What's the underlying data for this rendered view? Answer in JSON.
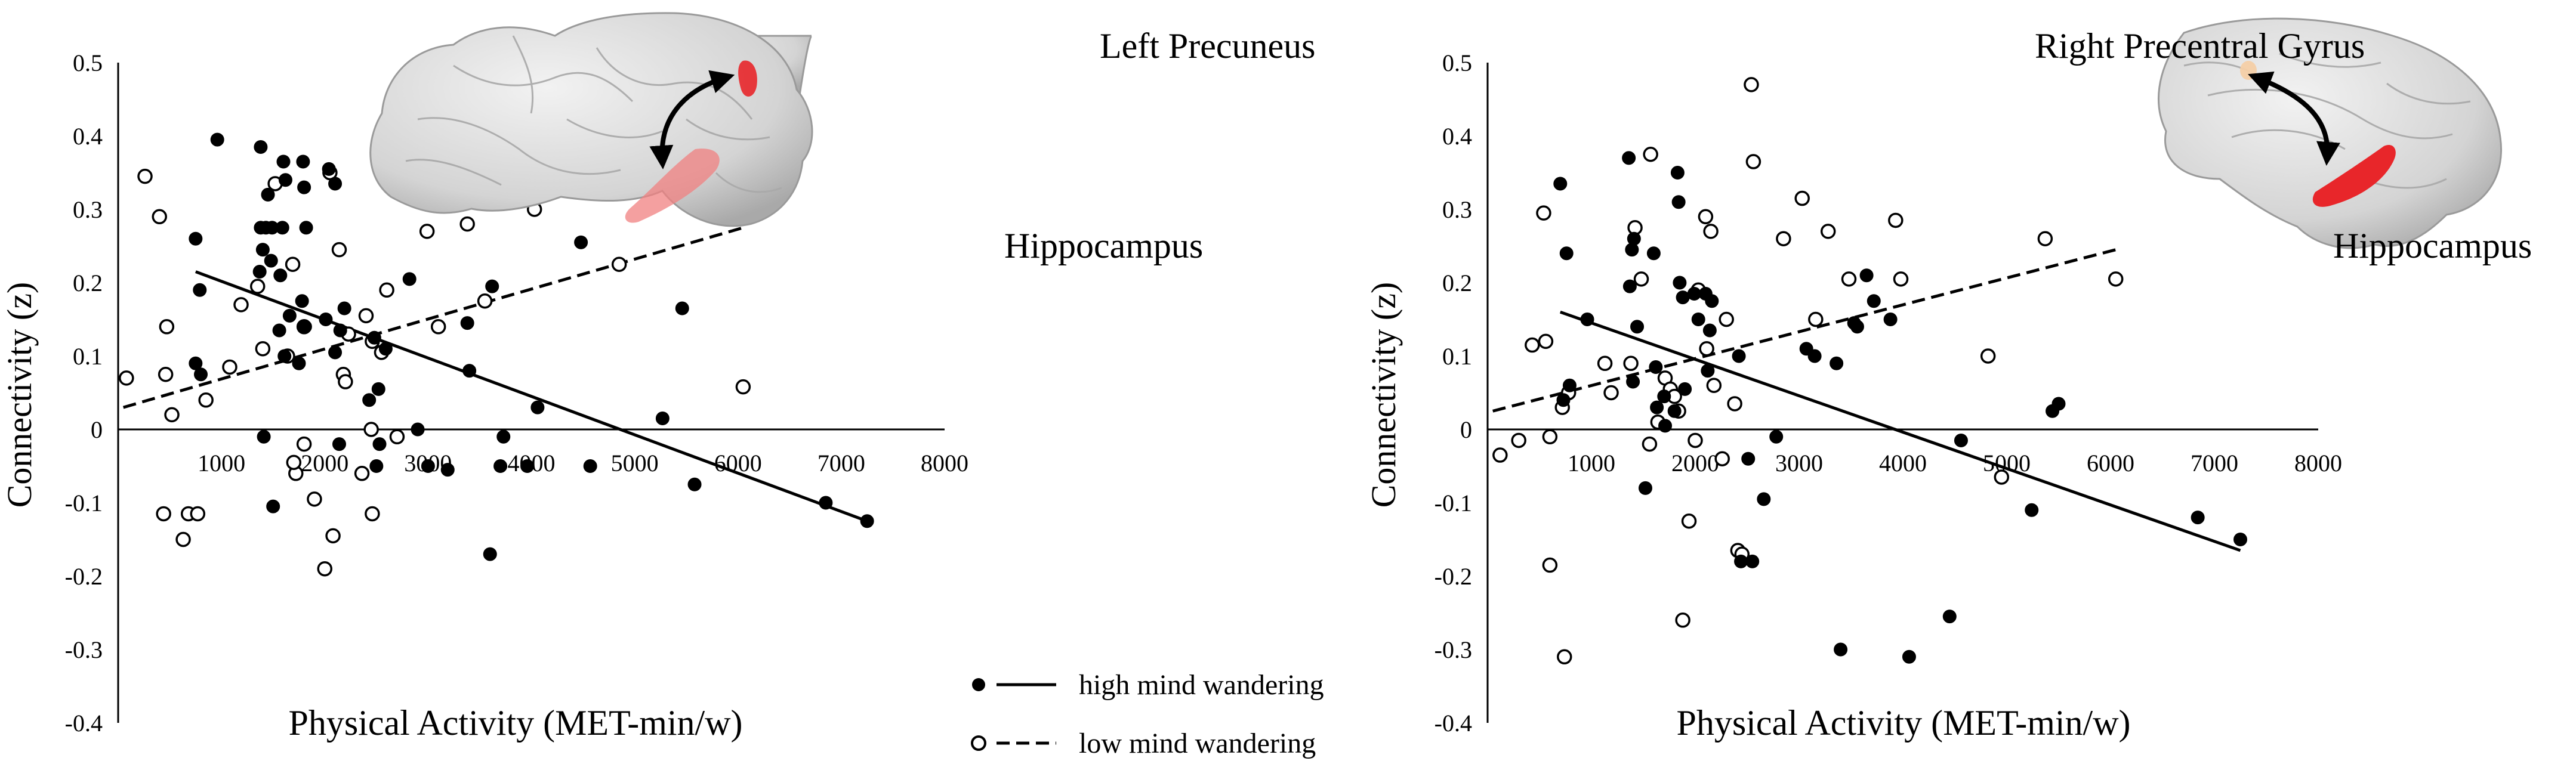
{
  "colors": {
    "marker_high": "#000000",
    "marker_low_fill": "#ffffff",
    "axis": "#000000",
    "brain": "#d6d6d6",
    "roi": "#e8262a",
    "roi_soft": "#f3a3a3",
    "roi_pale": "#f4cfa6"
  },
  "legend": {
    "high": "high mind wandering",
    "low": "low mind wandering",
    "placement": "bottom-center"
  },
  "panels": [
    {
      "region_top": "Left Precuneus",
      "region_bottom": "Hippocampus",
      "brain_view": "lateral",
      "arrow_icon": "double-headed-curved-arrow-icon"
    },
    {
      "region_top": "Right Precentral Gyrus",
      "region_bottom": "Hippocampus",
      "brain_view": "medial",
      "arrow_icon": "double-headed-curved-arrow-icon"
    }
  ],
  "chart_data": [
    {
      "type": "scatter",
      "xlabel": "Physical Activity (MET-min/w)",
      "ylabel": "Connectivity (z)",
      "xlim": [
        0,
        8000
      ],
      "ylim": [
        -0.4,
        0.5
      ],
      "xticks": [
        1000,
        2000,
        3000,
        4000,
        5000,
        6000,
        7000,
        8000
      ],
      "yticks": [
        0.5,
        0.4,
        0.3,
        0.2,
        0.1,
        0,
        -0.1,
        -0.2,
        -0.3,
        -0.4
      ],
      "grid": false,
      "series": [
        {
          "name": "high mind wandering",
          "marker": "filled",
          "line": "solid",
          "fit": [
            [
              750,
              0.215
            ],
            [
              7250,
              -0.125
            ]
          ],
          "points": [
            [
              750,
              0.26
            ],
            [
              790,
              0.19
            ],
            [
              750,
              0.09
            ],
            [
              800,
              0.075
            ],
            [
              960,
              0.395
            ],
            [
              1380,
              0.385
            ],
            [
              1450,
              0.32
            ],
            [
              1380,
              0.275
            ],
            [
              1430,
              0.275
            ],
            [
              1490,
              0.275
            ],
            [
              1400,
              0.245
            ],
            [
              1370,
              0.215
            ],
            [
              1480,
              0.23
            ],
            [
              1600,
              0.365
            ],
            [
              1620,
              0.34
            ],
            [
              1590,
              0.275
            ],
            [
              1570,
              0.21
            ],
            [
              1560,
              0.135
            ],
            [
              1660,
              0.155
            ],
            [
              1610,
              0.1
            ],
            [
              1410,
              -0.01
            ],
            [
              1500,
              -0.105
            ],
            [
              1790,
              0.365
            ],
            [
              1800,
              0.33
            ],
            [
              1820,
              0.275
            ],
            [
              1780,
              0.175
            ],
            [
              1750,
              0.09
            ],
            [
              1810,
              0.14
            ],
            [
              2040,
              0.355
            ],
            [
              2100,
              0.335
            ],
            [
              2010,
              0.15
            ],
            [
              2150,
              0.135
            ],
            [
              2190,
              0.165
            ],
            [
              2100,
              0.105
            ],
            [
              2140,
              -0.02
            ],
            [
              2430,
              0.04
            ],
            [
              2480,
              0.125
            ],
            [
              2520,
              0.055
            ],
            [
              2530,
              -0.02
            ],
            [
              2500,
              -0.05
            ],
            [
              2590,
              0.11
            ],
            [
              2820,
              0.205
            ],
            [
              3000,
              -0.05
            ],
            [
              3190,
              -0.055
            ],
            [
              3380,
              0.145
            ],
            [
              3400,
              0.08
            ],
            [
              3620,
              0.195
            ],
            [
              3730,
              -0.01
            ],
            [
              3600,
              -0.17
            ],
            [
              3960,
              -0.05
            ],
            [
              4060,
              0.03
            ],
            [
              4480,
              0.255
            ],
            [
              4570,
              -0.05
            ],
            [
              5270,
              0.015
            ],
            [
              5460,
              0.165
            ],
            [
              5580,
              -0.075
            ],
            [
              6850,
              -0.1
            ],
            [
              7250,
              -0.125
            ],
            [
              3700,
              -0.05
            ],
            [
              2900,
              0.0
            ]
          ]
        },
        {
          "name": "low mind wandering",
          "marker": "open",
          "line": "dashed",
          "fit": [
            [
              50,
              0.03
            ],
            [
              6050,
              0.275
            ]
          ],
          "points": [
            [
              80,
              0.07
            ],
            [
              260,
              0.345
            ],
            [
              400,
              0.29
            ],
            [
              470,
              0.14
            ],
            [
              460,
              0.075
            ],
            [
              520,
              0.02
            ],
            [
              440,
              -0.115
            ],
            [
              680,
              -0.115
            ],
            [
              630,
              -0.15
            ],
            [
              770,
              -0.115
            ],
            [
              850,
              0.04
            ],
            [
              1080,
              0.085
            ],
            [
              1190,
              0.17
            ],
            [
              1350,
              0.195
            ],
            [
              1400,
              0.11
            ],
            [
              1520,
              0.335
            ],
            [
              1690,
              0.225
            ],
            [
              1720,
              -0.06
            ],
            [
              1700,
              -0.045
            ],
            [
              1800,
              -0.02
            ],
            [
              1800,
              0.14
            ],
            [
              1900,
              -0.095
            ],
            [
              2000,
              -0.19
            ],
            [
              2050,
              0.35
            ],
            [
              2140,
              0.245
            ],
            [
              2180,
              0.075
            ],
            [
              2200,
              0.065
            ],
            [
              2230,
              0.13
            ],
            [
              2080,
              -0.145
            ],
            [
              2360,
              -0.06
            ],
            [
              2400,
              0.155
            ],
            [
              2450,
              0.0
            ],
            [
              2460,
              -0.115
            ],
            [
              2550,
              0.105
            ],
            [
              2600,
              0.19
            ],
            [
              2700,
              -0.01
            ],
            [
              2990,
              0.27
            ],
            [
              3100,
              0.14
            ],
            [
              3380,
              0.28
            ],
            [
              3550,
              0.175
            ],
            [
              3990,
              0.37
            ],
            [
              4030,
              0.3
            ],
            [
              4720,
              0.445
            ],
            [
              4850,
              0.225
            ],
            [
              5420,
              0.355
            ],
            [
              6050,
              0.058
            ],
            [
              1640,
              0.1
            ],
            [
              2460,
              0.12
            ]
          ]
        }
      ]
    },
    {
      "type": "scatter",
      "xlabel": "Physical Activity (MET-min/w)",
      "ylabel": "Connectivity (z)",
      "xlim": [
        0,
        8000
      ],
      "ylim": [
        -0.4,
        0.5
      ],
      "xticks": [
        1000,
        2000,
        3000,
        4000,
        5000,
        6000,
        7000,
        8000
      ],
      "yticks": [
        0.5,
        0.4,
        0.3,
        0.2,
        0.1,
        0,
        -0.1,
        -0.2,
        -0.3,
        -0.4
      ],
      "grid": false,
      "series": [
        {
          "name": "high mind wandering",
          "marker": "filled",
          "line": "solid",
          "fit": [
            [
              700,
              0.16
            ],
            [
              7250,
              -0.165
            ]
          ],
          "points": [
            [
              700,
              0.335
            ],
            [
              760,
              0.24
            ],
            [
              790,
              0.06
            ],
            [
              730,
              0.04
            ],
            [
              960,
              0.15
            ],
            [
              1360,
              0.37
            ],
            [
              1410,
              0.26
            ],
            [
              1390,
              0.245
            ],
            [
              1370,
              0.195
            ],
            [
              1440,
              0.14
            ],
            [
              1400,
              0.065
            ],
            [
              1520,
              -0.08
            ],
            [
              1600,
              0.24
            ],
            [
              1620,
              0.085
            ],
            [
              1630,
              0.03
            ],
            [
              1700,
              0.045
            ],
            [
              1710,
              0.005
            ],
            [
              1830,
              0.35
            ],
            [
              1840,
              0.31
            ],
            [
              1850,
              0.2
            ],
            [
              1880,
              0.18
            ],
            [
              1900,
              0.055
            ],
            [
              1800,
              0.025
            ],
            [
              1990,
              0.185
            ],
            [
              2100,
              0.185
            ],
            [
              2160,
              0.175
            ],
            [
              2140,
              0.135
            ],
            [
              2120,
              0.08
            ],
            [
              2030,
              0.15
            ],
            [
              2420,
              0.1
            ],
            [
              2510,
              -0.04
            ],
            [
              2550,
              -0.18
            ],
            [
              2440,
              -0.18
            ],
            [
              2660,
              -0.095
            ],
            [
              2780,
              -0.01
            ],
            [
              3070,
              0.11
            ],
            [
              3360,
              0.09
            ],
            [
              3400,
              -0.3
            ],
            [
              3530,
              0.145
            ],
            [
              3560,
              0.14
            ],
            [
              3650,
              0.21
            ],
            [
              3720,
              0.175
            ],
            [
              3880,
              0.15
            ],
            [
              4060,
              -0.31
            ],
            [
              4560,
              -0.015
            ],
            [
              4450,
              -0.255
            ],
            [
              5240,
              -0.11
            ],
            [
              5440,
              0.025
            ],
            [
              5500,
              0.035
            ],
            [
              6840,
              -0.12
            ],
            [
              7250,
              -0.15
            ],
            [
              3150,
              0.1
            ]
          ]
        },
        {
          "name": "low mind wandering",
          "marker": "open",
          "line": "dashed",
          "fit": [
            [
              50,
              0.025
            ],
            [
              6050,
              0.245
            ]
          ],
          "points": [
            [
              120,
              -0.035
            ],
            [
              300,
              -0.015
            ],
            [
              430,
              0.115
            ],
            [
              560,
              0.12
            ],
            [
              540,
              0.295
            ],
            [
              600,
              -0.185
            ],
            [
              600,
              -0.01
            ],
            [
              720,
              0.03
            ],
            [
              780,
              0.05
            ],
            [
              740,
              -0.31
            ],
            [
              1130,
              0.09
            ],
            [
              1190,
              0.05
            ],
            [
              1420,
              0.275
            ],
            [
              1380,
              0.09
            ],
            [
              1570,
              0.375
            ],
            [
              1480,
              0.205
            ],
            [
              1560,
              -0.02
            ],
            [
              1640,
              0.01
            ],
            [
              1710,
              0.07
            ],
            [
              1760,
              0.055
            ],
            [
              1800,
              0.045
            ],
            [
              1840,
              0.025
            ],
            [
              1880,
              -0.26
            ],
            [
              1940,
              -0.125
            ],
            [
              2000,
              -0.015
            ],
            [
              2030,
              0.19
            ],
            [
              2100,
              0.29
            ],
            [
              2110,
              0.11
            ],
            [
              2180,
              0.06
            ],
            [
              2260,
              -0.04
            ],
            [
              2380,
              0.035
            ],
            [
              2410,
              -0.165
            ],
            [
              2450,
              -0.17
            ],
            [
              2540,
              0.47
            ],
            [
              2560,
              0.365
            ],
            [
              2850,
              0.26
            ],
            [
              3030,
              0.315
            ],
            [
              3160,
              0.15
            ],
            [
              3280,
              0.27
            ],
            [
              3480,
              0.205
            ],
            [
              3930,
              0.285
            ],
            [
              3980,
              0.205
            ],
            [
              4820,
              0.1
            ],
            [
              4950,
              -0.065
            ],
            [
              5370,
              0.26
            ],
            [
              6050,
              0.205
            ],
            [
              2150,
              0.27
            ],
            [
              2300,
              0.15
            ]
          ]
        }
      ]
    }
  ]
}
